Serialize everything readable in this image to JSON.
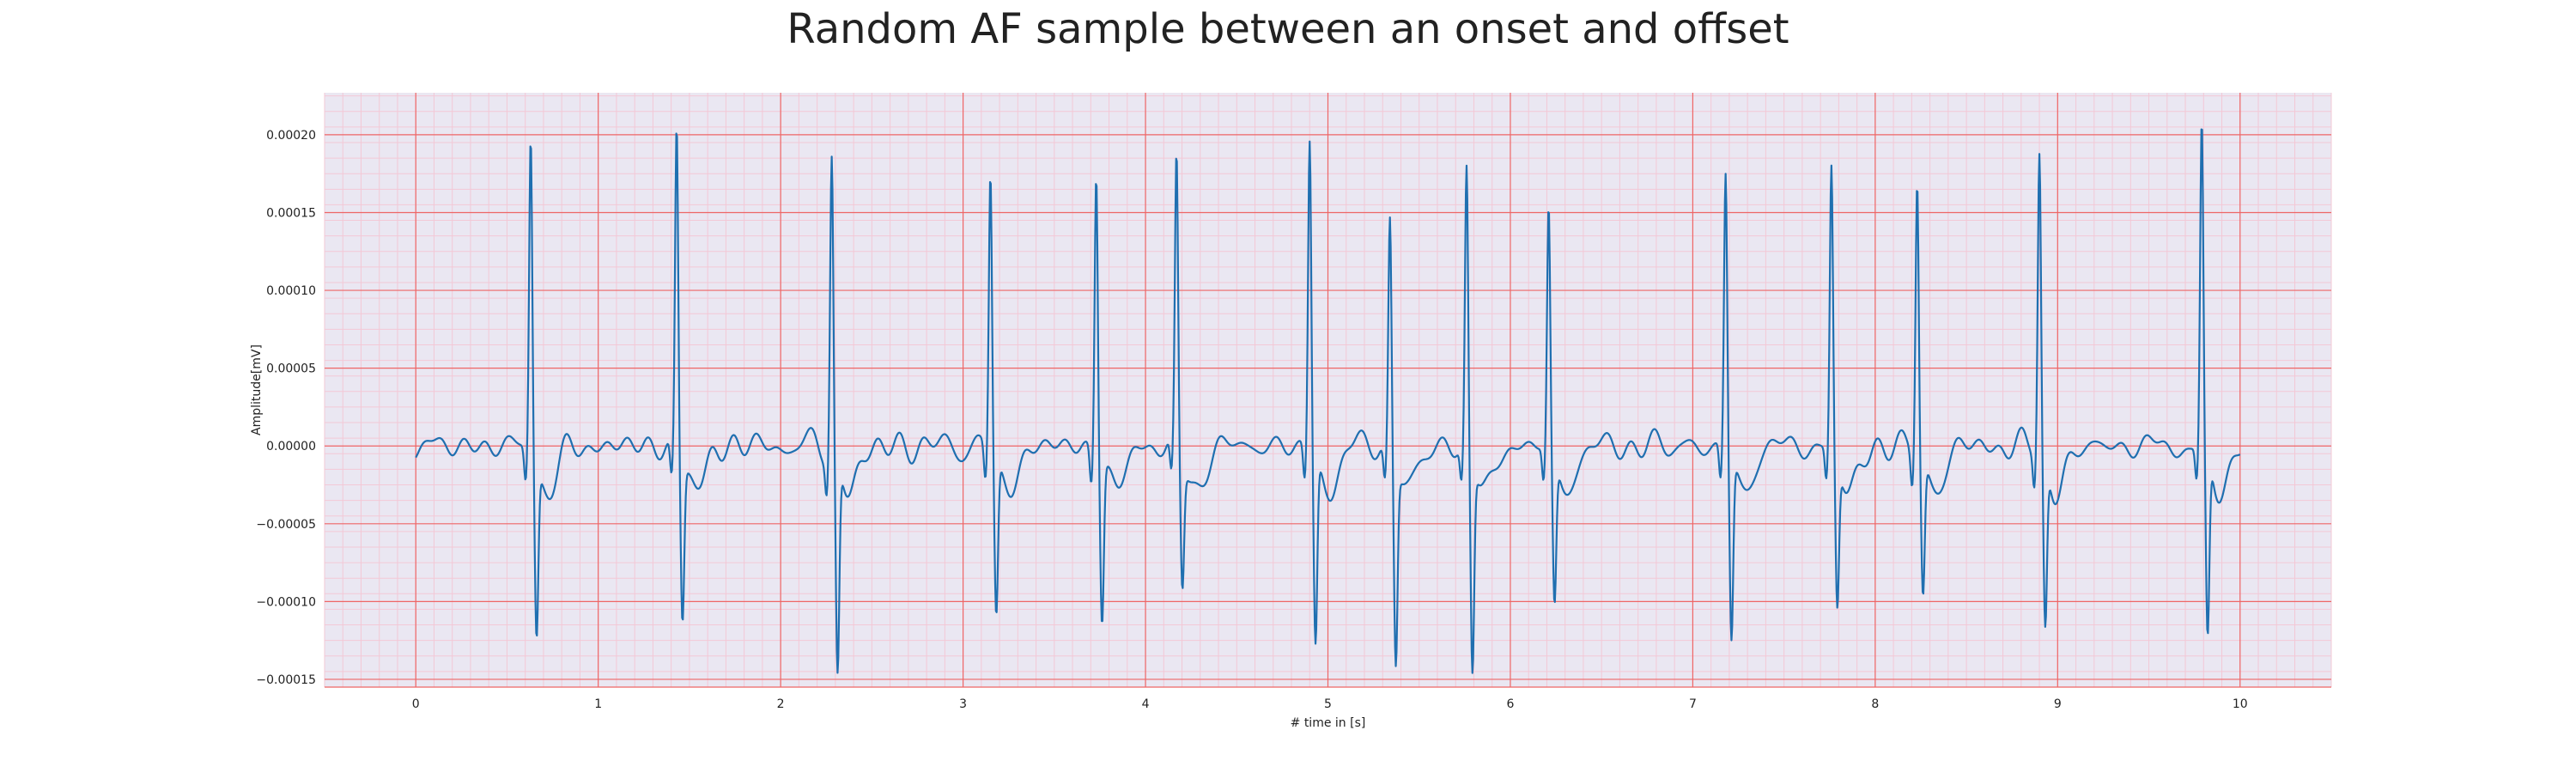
{
  "chart_data": {
    "type": "line",
    "title": "Random AF sample between an onset and offset",
    "xlabel": "# time in [s]",
    "ylabel": "Amplitude[mV]",
    "xlim": [
      -0.5,
      10.5
    ],
    "ylim": [
      -0.000155,
      0.000227
    ],
    "x_ticks": [
      0,
      1,
      2,
      3,
      4,
      5,
      6,
      7,
      8,
      9,
      10
    ],
    "x_tick_labels": [
      "0",
      "1",
      "2",
      "3",
      "4",
      "5",
      "6",
      "7",
      "8",
      "9",
      "10"
    ],
    "y_ticks": [
      -0.00015,
      -0.0001,
      -5e-05,
      0,
      5e-05,
      0.0001,
      0.00015,
      0.0002
    ],
    "y_tick_labels": [
      "−0.00015",
      "−0.00010",
      "−0.00005",
      "0.00000",
      "0.00005",
      "0.00010",
      "0.00015",
      "0.00020"
    ],
    "grid": true,
    "minor_grid": true,
    "colors": {
      "background": "#eae7f2",
      "major_grid": "#ee6666",
      "minor_grid": "#f3c8d6",
      "line": "#1f6fb0"
    },
    "sampling_rate_hz": 250,
    "duration_s": 10,
    "baseline_amplitude": 1e-05,
    "beats": [
      {
        "t": 0.63,
        "peak": 0.000203,
        "trough": -0.00011
      },
      {
        "t": 1.43,
        "peak": 0.00021,
        "trough": -0.0001
      },
      {
        "t": 2.28,
        "peak": 0.00019,
        "trough": -0.000139
      },
      {
        "t": 3.15,
        "peak": 0.00018,
        "trough": -0.0001
      },
      {
        "t": 3.73,
        "peak": 0.000185,
        "trough": -0.000101
      },
      {
        "t": 4.17,
        "peak": 0.000186,
        "trough": -8e-05
      },
      {
        "t": 4.9,
        "peak": 0.0002,
        "trough": -0.00012
      },
      {
        "t": 5.34,
        "peak": 0.000151,
        "trough": -0.000125
      },
      {
        "t": 5.76,
        "peak": 0.00018,
        "trough": -0.000134
      },
      {
        "t": 6.21,
        "peak": 0.000154,
        "trough": -9.4e-05
      },
      {
        "t": 7.18,
        "peak": 0.000178,
        "trough": -0.000117
      },
      {
        "t": 7.76,
        "peak": 0.00018,
        "trough": -9.4e-05
      },
      {
        "t": 8.23,
        "peak": 0.000176,
        "trough": -8.7e-05
      },
      {
        "t": 8.9,
        "peak": 0.00019,
        "trough": -0.000108
      },
      {
        "t": 9.79,
        "peak": 0.000205,
        "trough": -0.00012
      }
    ]
  }
}
